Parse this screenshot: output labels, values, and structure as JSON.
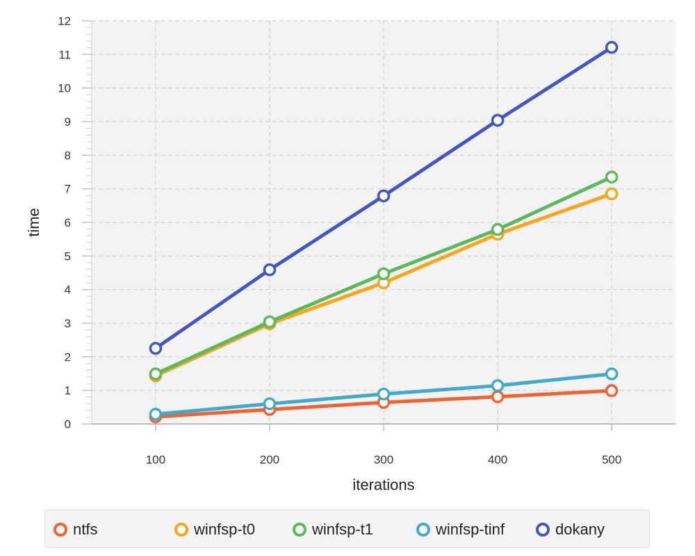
{
  "chart_data": {
    "type": "line",
    "title": "",
    "xlabel": "iterations",
    "ylabel": "time",
    "x": [
      100,
      200,
      300,
      400,
      500
    ],
    "xticks": [
      "100",
      "200",
      "300",
      "400",
      "500"
    ],
    "yticks": [
      "0",
      "1",
      "2",
      "3",
      "4",
      "5",
      "6",
      "7",
      "8",
      "9",
      "10",
      "11",
      "12"
    ],
    "xlim": [
      44,
      556
    ],
    "ylim": [
      0,
      12
    ],
    "grid": true,
    "legend_position": "bottom",
    "series": [
      {
        "name": "ntfs",
        "color": "#f26130",
        "values": [
          0.21,
          0.43,
          0.64,
          0.81,
          0.99
        ]
      },
      {
        "name": "winfsp-t0",
        "color": "#f9a51b",
        "values": [
          1.43,
          2.98,
          4.2,
          5.65,
          6.85
        ]
      },
      {
        "name": "winfsp-t1",
        "color": "#5cb85c",
        "values": [
          1.49,
          3.04,
          4.47,
          5.79,
          7.35
        ]
      },
      {
        "name": "winfsp-tinf",
        "color": "#41a9cc",
        "values": [
          0.29,
          0.6,
          0.89,
          1.14,
          1.49
        ]
      },
      {
        "name": "dokany",
        "color": "#3f55c8",
        "values": [
          2.25,
          4.59,
          6.79,
          9.04,
          11.21
        ]
      }
    ]
  }
}
